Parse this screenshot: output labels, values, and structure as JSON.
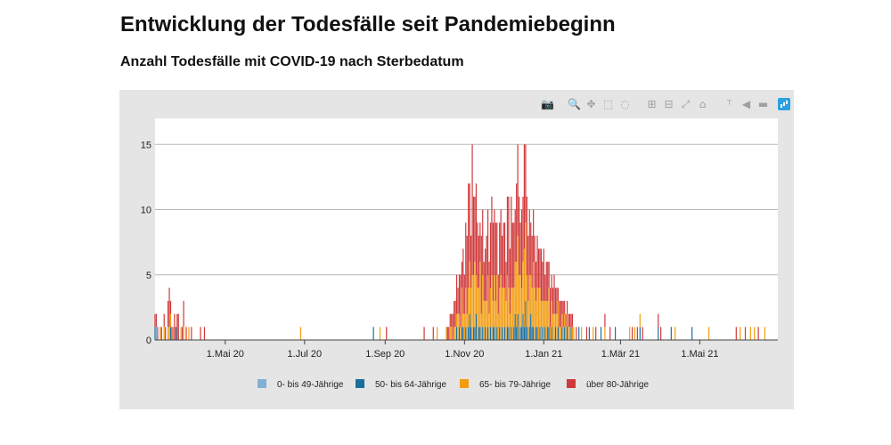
{
  "page": {
    "title": "Entwicklung der Todesfälle seit Pandemiebeginn",
    "subtitle": "Anzahl Todesfälle mit COVID-19 nach Sterbedatum"
  },
  "modebar": {
    "icons": [
      "camera-icon",
      "zoom-icon",
      "pan-icon",
      "box-select-icon",
      "lasso-select-icon",
      "zoom-in-icon",
      "zoom-out-icon",
      "autoscale-icon",
      "reset-axes-icon",
      "spike-lines-icon",
      "hover-closest-icon",
      "hover-compare-icon",
      "plotly-logo-icon"
    ],
    "glyphs": [
      "📷",
      "🔍",
      "✥",
      "⬚",
      "◌",
      "⊞",
      "⊟",
      "⤢",
      "⌂",
      "⸆",
      "◀",
      "▬",
      ""
    ]
  },
  "chart_data": {
    "type": "bar",
    "barmode": "stack",
    "xaxis": {
      "type": "date",
      "range": [
        "2020-03-08",
        "2021-06-30"
      ]
    },
    "ylim": [
      0,
      17
    ],
    "yticks": [
      0,
      5,
      10,
      15
    ],
    "xticks": [
      {
        "date": "2020-05-01",
        "label": "1.Mai 20"
      },
      {
        "date": "2020-07-01",
        "label": "1.Jul 20"
      },
      {
        "date": "2020-09-01",
        "label": "1.Sep 20"
      },
      {
        "date": "2020-11-01",
        "label": "1.Nov 20"
      },
      {
        "date": "2021-01-01",
        "label": "1.Jan 21"
      },
      {
        "date": "2021-03-01",
        "label": "1.Mär 21"
      },
      {
        "date": "2021-05-01",
        "label": "1.Mai 21"
      }
    ],
    "grid": true,
    "legend_position": "bottom",
    "series": [
      {
        "name": "0- bis 49-Jährige",
        "color": "#80b1d3"
      },
      {
        "name": "50- bis 64-Jährige",
        "color": "#1b6f9e"
      },
      {
        "name": "65- bis 79-Jährige",
        "color": "#f39c12"
      },
      {
        "name": "über 80-Jährige",
        "color": "#d0393b"
      }
    ],
    "days": [
      [
        "2020-03-08",
        [
          0,
          1,
          0,
          1
        ]
      ],
      [
        "2020-03-09",
        [
          1,
          0,
          0,
          1
        ]
      ],
      [
        "2020-03-10",
        [
          0,
          0,
          0,
          1
        ]
      ],
      [
        "2020-03-12",
        [
          0,
          0,
          1,
          0
        ]
      ],
      [
        "2020-03-13",
        [
          0,
          0,
          0,
          1
        ]
      ],
      [
        "2020-03-15",
        [
          0,
          0,
          1,
          1
        ]
      ],
      [
        "2020-03-16",
        [
          0,
          0,
          0,
          1
        ]
      ],
      [
        "2020-03-18",
        [
          0,
          0,
          1,
          2
        ]
      ],
      [
        "2020-03-19",
        [
          0,
          0,
          1,
          3
        ]
      ],
      [
        "2020-03-20",
        [
          0,
          1,
          1,
          1
        ]
      ],
      [
        "2020-03-21",
        [
          0,
          0,
          0,
          1
        ]
      ],
      [
        "2020-03-22",
        [
          0,
          0,
          1,
          0
        ]
      ],
      [
        "2020-03-23",
        [
          0,
          0,
          0,
          2
        ]
      ],
      [
        "2020-03-24",
        [
          0,
          0,
          0,
          1
        ]
      ],
      [
        "2020-03-25",
        [
          0,
          1,
          0,
          1
        ]
      ],
      [
        "2020-03-26",
        [
          0,
          0,
          0,
          2
        ]
      ],
      [
        "2020-03-28",
        [
          0,
          0,
          1,
          0
        ]
      ],
      [
        "2020-03-29",
        [
          0,
          0,
          0,
          1
        ]
      ],
      [
        "2020-03-30",
        [
          0,
          0,
          1,
          2
        ]
      ],
      [
        "2020-04-01",
        [
          0,
          0,
          0,
          1
        ]
      ],
      [
        "2020-04-03",
        [
          0,
          0,
          1,
          0
        ]
      ],
      [
        "2020-04-05",
        [
          0,
          0,
          0,
          1
        ]
      ],
      [
        "2020-04-12",
        [
          0,
          0,
          0,
          1
        ]
      ],
      [
        "2020-04-15",
        [
          0,
          0,
          0,
          1
        ]
      ],
      [
        "2020-06-28",
        [
          0,
          0,
          1,
          0
        ]
      ],
      [
        "2020-08-23",
        [
          0,
          1,
          0,
          0
        ]
      ],
      [
        "2020-08-28",
        [
          0,
          0,
          1,
          0
        ]
      ],
      [
        "2020-09-02",
        [
          0,
          0,
          0,
          1
        ]
      ],
      [
        "2020-10-01",
        [
          0,
          0,
          0,
          1
        ]
      ],
      [
        "2020-10-08",
        [
          0,
          0,
          0,
          1
        ]
      ],
      [
        "2020-10-11",
        [
          0,
          0,
          1,
          0
        ]
      ],
      [
        "2020-10-18",
        [
          0,
          0,
          1,
          0
        ]
      ],
      [
        "2020-10-19",
        [
          0,
          0,
          0,
          1
        ]
      ],
      [
        "2020-10-20",
        [
          0,
          0,
          0,
          1
        ]
      ],
      [
        "2020-10-21",
        [
          0,
          0,
          1,
          1
        ]
      ],
      [
        "2020-10-22",
        [
          0,
          0,
          1,
          1
        ]
      ],
      [
        "2020-10-23",
        [
          0,
          0,
          0,
          2
        ]
      ],
      [
        "2020-10-24",
        [
          0,
          0,
          1,
          2
        ]
      ],
      [
        "2020-10-25",
        [
          0,
          0,
          1,
          2
        ]
      ],
      [
        "2020-10-26",
        [
          0,
          1,
          1,
          3
        ]
      ],
      [
        "2020-10-27",
        [
          0,
          0,
          2,
          2
        ]
      ],
      [
        "2020-10-28",
        [
          0,
          1,
          1,
          3
        ]
      ],
      [
        "2020-10-29",
        [
          0,
          0,
          1,
          4
        ]
      ],
      [
        "2020-10-30",
        [
          0,
          1,
          3,
          2
        ]
      ],
      [
        "2020-10-31",
        [
          0,
          1,
          1,
          5
        ]
      ],
      [
        "2020-11-01",
        [
          0,
          0,
          2,
          3
        ]
      ],
      [
        "2020-11-02",
        [
          0,
          1,
          3,
          5
        ]
      ],
      [
        "2020-11-03",
        [
          0,
          0,
          2,
          6
        ]
      ],
      [
        "2020-11-04",
        [
          0,
          1,
          3,
          8
        ]
      ],
      [
        "2020-11-05",
        [
          0,
          2,
          4,
          6
        ]
      ],
      [
        "2020-11-06",
        [
          0,
          1,
          3,
          4
        ]
      ],
      [
        "2020-11-07",
        [
          0,
          0,
          5,
          10
        ]
      ],
      [
        "2020-11-08",
        [
          0,
          1,
          4,
          6
        ]
      ],
      [
        "2020-11-09",
        [
          0,
          1,
          5,
          5
        ]
      ],
      [
        "2020-11-10",
        [
          0,
          2,
          3,
          7
        ]
      ],
      [
        "2020-11-11",
        [
          0,
          0,
          4,
          5
        ]
      ],
      [
        "2020-11-12",
        [
          0,
          1,
          3,
          4
        ]
      ],
      [
        "2020-11-13",
        [
          0,
          1,
          5,
          3
        ]
      ],
      [
        "2020-11-14",
        [
          0,
          0,
          2,
          6
        ]
      ],
      [
        "2020-11-15",
        [
          0,
          1,
          4,
          5
        ]
      ],
      [
        "2020-11-16",
        [
          0,
          0,
          3,
          3
        ]
      ],
      [
        "2020-11-17",
        [
          0,
          1,
          2,
          4
        ]
      ],
      [
        "2020-11-18",
        [
          0,
          0,
          3,
          5
        ]
      ],
      [
        "2020-11-19",
        [
          0,
          1,
          4,
          5
        ]
      ],
      [
        "2020-11-20",
        [
          0,
          0,
          2,
          4
        ]
      ],
      [
        "2020-11-21",
        [
          0,
          1,
          3,
          5
        ]
      ],
      [
        "2020-11-22",
        [
          0,
          0,
          5,
          6
        ]
      ],
      [
        "2020-11-23",
        [
          0,
          1,
          2,
          6
        ]
      ],
      [
        "2020-11-24",
        [
          0,
          1,
          4,
          5
        ]
      ],
      [
        "2020-11-25",
        [
          0,
          0,
          3,
          6
        ]
      ],
      [
        "2020-11-26",
        [
          0,
          1,
          4,
          4
        ]
      ],
      [
        "2020-11-27",
        [
          0,
          0,
          2,
          3
        ]
      ],
      [
        "2020-11-28",
        [
          0,
          1,
          3,
          5
        ]
      ],
      [
        "2020-11-29",
        [
          0,
          0,
          5,
          5
        ]
      ],
      [
        "2020-11-30",
        [
          0,
          1,
          3,
          4
        ]
      ],
      [
        "2020-12-01",
        [
          0,
          0,
          4,
          5
        ]
      ],
      [
        "2020-12-02",
        [
          0,
          1,
          3,
          5
        ]
      ],
      [
        "2020-12-03",
        [
          0,
          0,
          3,
          3
        ]
      ],
      [
        "2020-12-04",
        [
          0,
          1,
          4,
          6
        ]
      ],
      [
        "2020-12-05",
        [
          0,
          1,
          3,
          7
        ]
      ],
      [
        "2020-12-06",
        [
          0,
          0,
          2,
          5
        ]
      ],
      [
        "2020-12-07",
        [
          0,
          1,
          3,
          7
        ]
      ],
      [
        "2020-12-08",
        [
          0,
          0,
          4,
          5
        ]
      ],
      [
        "2020-12-09",
        [
          0,
          1,
          3,
          5
        ]
      ],
      [
        "2020-12-10",
        [
          0,
          2,
          4,
          4
        ]
      ],
      [
        "2020-12-11",
        [
          0,
          1,
          5,
          6
        ]
      ],
      [
        "2020-12-12",
        [
          0,
          2,
          6,
          7
        ]
      ],
      [
        "2020-12-13",
        [
          0,
          0,
          5,
          6
        ]
      ],
      [
        "2020-12-14",
        [
          0,
          1,
          4,
          4
        ]
      ],
      [
        "2020-12-15",
        [
          0,
          1,
          3,
          6
        ]
      ],
      [
        "2020-12-16",
        [
          0,
          2,
          4,
          5
        ]
      ],
      [
        "2020-12-17",
        [
          0,
          1,
          6,
          8
        ]
      ],
      [
        "2020-12-18",
        [
          0,
          3,
          6,
          6
        ]
      ],
      [
        "2020-12-19",
        [
          0,
          1,
          4,
          6
        ]
      ],
      [
        "2020-12-20",
        [
          0,
          0,
          3,
          5
        ]
      ],
      [
        "2020-12-21",
        [
          0,
          1,
          4,
          5
        ]
      ],
      [
        "2020-12-22",
        [
          0,
          2,
          3,
          4
        ]
      ],
      [
        "2020-12-23",
        [
          0,
          1,
          3,
          4
        ]
      ],
      [
        "2020-12-24",
        [
          0,
          1,
          5,
          4
        ]
      ],
      [
        "2020-12-25",
        [
          0,
          0,
          4,
          4
        ]
      ],
      [
        "2020-12-26",
        [
          0,
          1,
          2,
          3
        ]
      ],
      [
        "2020-12-27",
        [
          0,
          1,
          3,
          4
        ]
      ],
      [
        "2020-12-28",
        [
          0,
          0,
          4,
          3
        ]
      ],
      [
        "2020-12-29",
        [
          0,
          1,
          3,
          3
        ]
      ],
      [
        "2020-12-30",
        [
          0,
          0,
          3,
          4
        ]
      ],
      [
        "2020-12-31",
        [
          0,
          1,
          2,
          3
        ]
      ],
      [
        "2021-01-01",
        [
          0,
          0,
          3,
          4
        ]
      ],
      [
        "2021-01-02",
        [
          0,
          1,
          2,
          2
        ]
      ],
      [
        "2021-01-03",
        [
          0,
          0,
          3,
          3
        ]
      ],
      [
        "2021-01-04",
        [
          0,
          1,
          2,
          3
        ]
      ],
      [
        "2021-01-05",
        [
          0,
          1,
          3,
          2
        ]
      ],
      [
        "2021-01-06",
        [
          0,
          0,
          1,
          3
        ]
      ],
      [
        "2021-01-07",
        [
          0,
          1,
          2,
          2
        ]
      ],
      [
        "2021-01-08",
        [
          0,
          0,
          2,
          2
        ]
      ],
      [
        "2021-01-09",
        [
          0,
          0,
          2,
          3
        ]
      ],
      [
        "2021-01-10",
        [
          0,
          1,
          1,
          2
        ]
      ],
      [
        "2021-01-11",
        [
          0,
          0,
          2,
          2
        ]
      ],
      [
        "2021-01-12",
        [
          0,
          1,
          2,
          1
        ]
      ],
      [
        "2021-01-13",
        [
          0,
          0,
          1,
          2
        ]
      ],
      [
        "2021-01-14",
        [
          0,
          0,
          1,
          2
        ]
      ],
      [
        "2021-01-15",
        [
          0,
          1,
          1,
          1
        ]
      ],
      [
        "2021-01-16",
        [
          0,
          0,
          1,
          2
        ]
      ],
      [
        "2021-01-17",
        [
          0,
          1,
          1,
          1
        ]
      ],
      [
        "2021-01-18",
        [
          0,
          0,
          1,
          1
        ]
      ],
      [
        "2021-01-19",
        [
          0,
          1,
          1,
          1
        ]
      ],
      [
        "2021-01-20",
        [
          0,
          0,
          1,
          1
        ]
      ],
      [
        "2021-01-21",
        [
          0,
          0,
          1,
          1
        ]
      ],
      [
        "2021-01-22",
        [
          0,
          1,
          0,
          1
        ]
      ],
      [
        "2021-01-23",
        [
          0,
          0,
          1,
          1
        ]
      ],
      [
        "2021-01-24",
        [
          0,
          0,
          1,
          0
        ]
      ],
      [
        "2021-01-26",
        [
          0,
          0,
          0,
          1
        ]
      ],
      [
        "2021-01-28",
        [
          0,
          1,
          0,
          0
        ]
      ],
      [
        "2021-01-30",
        [
          0,
          0,
          1,
          0
        ]
      ],
      [
        "2021-02-03",
        [
          0,
          0,
          0,
          1
        ]
      ],
      [
        "2021-02-05",
        [
          0,
          1,
          0,
          0
        ]
      ],
      [
        "2021-02-08",
        [
          0,
          0,
          1,
          0
        ]
      ],
      [
        "2021-02-10",
        [
          0,
          0,
          0,
          1
        ]
      ],
      [
        "2021-02-14",
        [
          0,
          1,
          0,
          0
        ]
      ],
      [
        "2021-02-17",
        [
          0,
          0,
          1,
          1
        ]
      ],
      [
        "2021-02-21",
        [
          0,
          0,
          0,
          1
        ]
      ],
      [
        "2021-02-25",
        [
          0,
          1,
          0,
          0
        ]
      ],
      [
        "2021-03-08",
        [
          0,
          0,
          1,
          0
        ]
      ],
      [
        "2021-03-10",
        [
          0,
          0,
          0,
          1
        ]
      ],
      [
        "2021-03-12",
        [
          0,
          0,
          1,
          0
        ]
      ],
      [
        "2021-03-14",
        [
          0,
          0,
          0,
          1
        ]
      ],
      [
        "2021-03-16",
        [
          0,
          1,
          1,
          0
        ]
      ],
      [
        "2021-03-18",
        [
          0,
          0,
          0,
          1
        ]
      ],
      [
        "2021-03-30",
        [
          0,
          1,
          0,
          1
        ]
      ],
      [
        "2021-04-01",
        [
          0,
          0,
          0,
          1
        ]
      ],
      [
        "2021-04-09",
        [
          0,
          1,
          0,
          0
        ]
      ],
      [
        "2021-04-12",
        [
          0,
          0,
          1,
          0
        ]
      ],
      [
        "2021-04-25",
        [
          0,
          1,
          0,
          0
        ]
      ],
      [
        "2021-05-08",
        [
          0,
          0,
          1,
          0
        ]
      ],
      [
        "2021-05-29",
        [
          0,
          0,
          0,
          1
        ]
      ],
      [
        "2021-06-01",
        [
          0,
          0,
          1,
          0
        ]
      ],
      [
        "2021-06-05",
        [
          0,
          0,
          0,
          1
        ]
      ],
      [
        "2021-06-09",
        [
          0,
          0,
          1,
          0
        ]
      ],
      [
        "2021-06-12",
        [
          0,
          0,
          1,
          0
        ]
      ],
      [
        "2021-06-15",
        [
          0,
          0,
          0,
          1
        ]
      ],
      [
        "2021-06-20",
        [
          0,
          0,
          1,
          0
        ]
      ]
    ]
  }
}
